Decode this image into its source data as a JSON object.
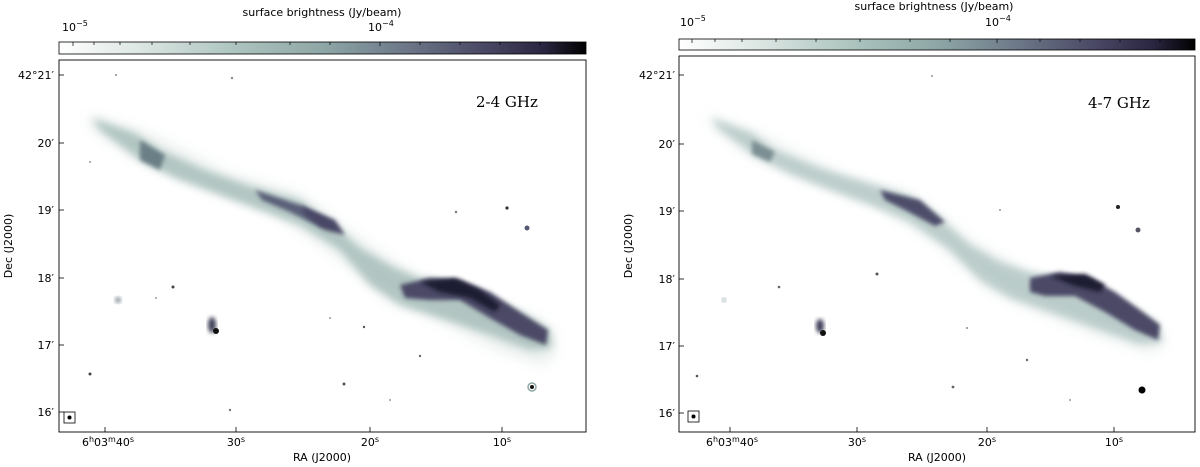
{
  "colormap": {
    "stops": [
      "#ffffff",
      "#dde7e4",
      "#a9c1bc",
      "#8ea7a6",
      "#6e7a8a",
      "#4b4a66",
      "#2a2540",
      "#000000"
    ]
  },
  "panels": [
    {
      "colorbar_label": "surface brightness (Jy/beam)",
      "colorbar_ticks": [
        {
          "base": "10",
          "exp": "−5"
        },
        {
          "base": "10",
          "exp": "−4"
        }
      ],
      "band_label": "2-4 GHz",
      "x_label": "RA (J2000)",
      "y_label": "Dec (J2000)",
      "ra_ticks": [
        {
          "h": "6",
          "m": "03",
          "s": "40",
          "full": true
        },
        {
          "s": "30"
        },
        {
          "s": "20"
        },
        {
          "s": "10"
        }
      ],
      "dec_ticks": [
        "42°21′",
        "20′",
        "19′",
        "18′",
        "17′",
        "16′"
      ]
    },
    {
      "colorbar_label": "surface brightness (Jy/beam)",
      "colorbar_ticks": [
        {
          "base": "10",
          "exp": "−5"
        },
        {
          "base": "10",
          "exp": "−4"
        }
      ],
      "band_label": "4-7 GHz",
      "x_label": "RA (J2000)",
      "y_label": "Dec (J2000)",
      "ra_ticks": [
        {
          "h": "6",
          "m": "03",
          "s": "40",
          "full": true
        },
        {
          "s": "30"
        },
        {
          "s": "20"
        },
        {
          "s": "10"
        }
      ],
      "dec_ticks": [
        "42°21′",
        "20′",
        "19′",
        "18′",
        "17′",
        "16′"
      ]
    }
  ]
}
